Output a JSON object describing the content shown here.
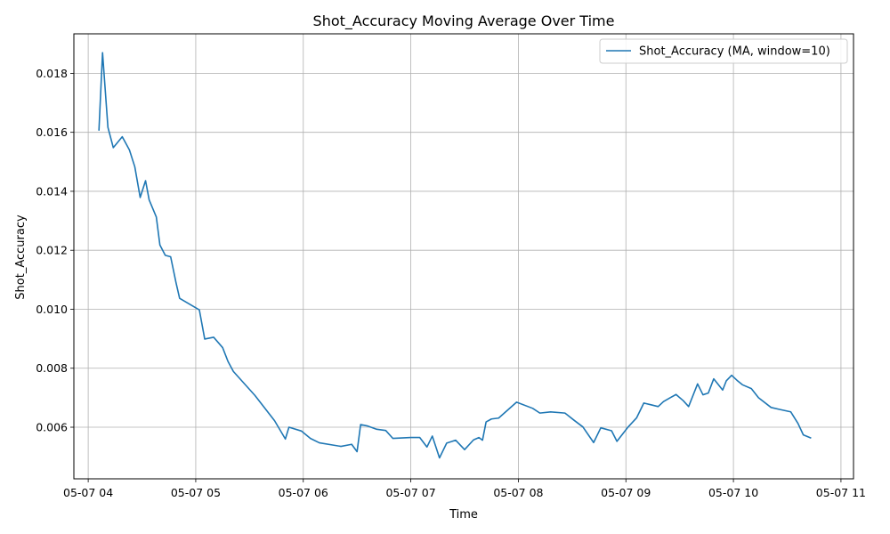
{
  "chart_data": {
    "type": "line",
    "title": "Shot_Accuracy Moving Average Over Time",
    "xlabel": "Time",
    "ylabel": "Shot_Accuracy",
    "grid": true,
    "legend_position": "top-right",
    "x_tick_labels": [
      "05-07 04",
      "05-07 05",
      "05-07 06",
      "05-07 07",
      "05-07 08",
      "05-07 09",
      "05-07 10",
      "05-07 11"
    ],
    "y_ticks": [
      0.006,
      0.008,
      0.01,
      0.012,
      0.014,
      0.016,
      0.018
    ],
    "y_tick_labels": [
      "0.006",
      "0.008",
      "0.010",
      "0.012",
      "0.014",
      "0.016",
      "0.018"
    ],
    "xlim": [
      "2024-05-07T03:52",
      "2024-05-07T11:07"
    ],
    "ylim": [
      0.00425,
      0.01934
    ],
    "series": [
      {
        "name": "Shot_Accuracy (MA, window=10)",
        "color": "#1f77b4",
        "x": [
          "2024-05-07T04:06",
          "2024-05-07T04:08",
          "2024-05-07T04:11",
          "2024-05-07T04:14",
          "2024-05-07T04:19",
          "2024-05-07T04:23",
          "2024-05-07T04:26",
          "2024-05-07T04:29",
          "2024-05-07T04:32",
          "2024-05-07T04:34",
          "2024-05-07T04:38",
          "2024-05-07T04:40",
          "2024-05-07T04:43",
          "2024-05-07T04:46",
          "2024-05-07T04:49",
          "2024-05-07T04:51",
          "2024-05-07T05:02",
          "2024-05-07T05:05",
          "2024-05-07T05:10",
          "2024-05-07T05:15",
          "2024-05-07T05:18",
          "2024-05-07T05:21",
          "2024-05-07T05:33",
          "2024-05-07T05:44",
          "2024-05-07T05:50",
          "2024-05-07T05:52",
          "2024-05-07T05:59",
          "2024-05-07T06:04",
          "2024-05-07T06:09",
          "2024-05-07T06:21",
          "2024-05-07T06:27",
          "2024-05-07T06:30",
          "2024-05-07T06:32",
          "2024-05-07T06:36",
          "2024-05-07T06:41",
          "2024-05-07T06:46",
          "2024-05-07T06:50",
          "2024-05-07T07:00",
          "2024-05-07T07:05",
          "2024-05-07T07:09",
          "2024-05-07T07:12",
          "2024-05-07T07:16",
          "2024-05-07T07:20",
          "2024-05-07T07:25",
          "2024-05-07T07:30",
          "2024-05-07T07:35",
          "2024-05-07T07:38",
          "2024-05-07T07:40",
          "2024-05-07T07:42",
          "2024-05-07T07:45",
          "2024-05-07T07:49",
          "2024-05-07T07:59",
          "2024-05-07T08:08",
          "2024-05-07T08:12",
          "2024-05-07T08:18",
          "2024-05-07T08:26",
          "2024-05-07T08:31",
          "2024-05-07T08:36",
          "2024-05-07T08:42",
          "2024-05-07T08:46",
          "2024-05-07T08:52",
          "2024-05-07T08:55",
          "2024-05-07T09:01",
          "2024-05-07T09:06",
          "2024-05-07T09:10",
          "2024-05-07T09:14",
          "2024-05-07T09:18",
          "2024-05-07T09:21",
          "2024-05-07T09:25",
          "2024-05-07T09:28",
          "2024-05-07T09:32",
          "2024-05-07T09:35",
          "2024-05-07T09:40",
          "2024-05-07T09:43",
          "2024-05-07T09:46",
          "2024-05-07T09:49",
          "2024-05-07T09:54",
          "2024-05-07T09:56",
          "2024-05-07T09:59",
          "2024-05-07T10:02",
          "2024-05-07T10:05",
          "2024-05-07T10:10",
          "2024-05-07T10:14",
          "2024-05-07T10:21",
          "2024-05-07T10:26",
          "2024-05-07T10:32",
          "2024-05-07T10:36",
          "2024-05-07T10:39",
          "2024-05-07T10:43"
        ],
        "values": [
          0.01608,
          0.0187,
          0.01617,
          0.01548,
          0.01585,
          0.0154,
          0.01483,
          0.01379,
          0.01436,
          0.01371,
          0.01313,
          0.01218,
          0.01183,
          0.01178,
          0.0109,
          0.01037,
          0.00998,
          0.00899,
          0.00905,
          0.0087,
          0.00823,
          0.00789,
          0.00708,
          0.00622,
          0.0056,
          0.006,
          0.00587,
          0.00562,
          0.00547,
          0.00535,
          0.00542,
          0.00517,
          0.00609,
          0.00604,
          0.00593,
          0.00589,
          0.00562,
          0.00565,
          0.00565,
          0.00533,
          0.0057,
          0.00496,
          0.00546,
          0.00556,
          0.00524,
          0.00557,
          0.00565,
          0.00556,
          0.00618,
          0.00628,
          0.00631,
          0.00685,
          0.00664,
          0.00648,
          0.00652,
          0.00648,
          0.00624,
          0.00601,
          0.00548,
          0.00598,
          0.00588,
          0.00552,
          0.00599,
          0.00632,
          0.00682,
          0.00676,
          0.0067,
          0.00687,
          0.00701,
          0.00711,
          0.0069,
          0.0067,
          0.00747,
          0.0071,
          0.00716,
          0.00764,
          0.00726,
          0.00757,
          0.00776,
          0.00759,
          0.00744,
          0.00731,
          0.007,
          0.00667,
          0.0066,
          0.00652,
          0.00613,
          0.00574,
          0.00564
        ]
      }
    ]
  }
}
